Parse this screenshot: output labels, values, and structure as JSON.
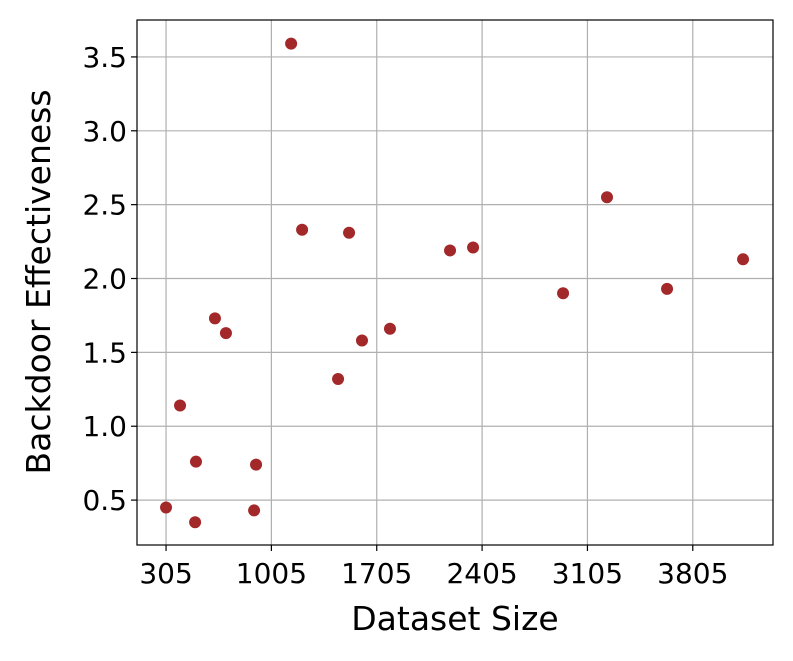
{
  "chart_data": {
    "type": "scatter",
    "x_label": "Dataset Size",
    "y_label": "Backdoor Effectiveness",
    "series": [
      {
        "color": "#a3282a",
        "x": [
          305,
          498,
          504,
          398,
          630,
          703,
          890,
          903,
          1136,
          1209,
          1448,
          1521,
          1607,
          1793,
          2192,
          2345,
          2943,
          3235,
          3634,
          4139
        ],
        "values": [
          0.45,
          0.35,
          0.76,
          1.14,
          1.73,
          1.63,
          0.43,
          0.74,
          3.59,
          2.33,
          1.32,
          2.31,
          1.58,
          1.66,
          2.19,
          2.21,
          1.9,
          2.55,
          1.93,
          2.13
        ]
      }
    ],
    "xlim": [
      112,
      4338
    ],
    "xticks": [
      305,
      1005,
      1705,
      2405,
      3105,
      3805
    ],
    "ylim": [
      0.196,
      3.75
    ],
    "yticks": [
      {
        "value": 0.5,
        "label": "0.5"
      },
      {
        "value": 1.0,
        "label": "1.0"
      },
      {
        "value": 1.5,
        "label": "1.5"
      },
      {
        "value": 2.0,
        "label": "2.0"
      },
      {
        "value": 2.5,
        "label": "2.5"
      },
      {
        "value": 3.0,
        "label": "3.0"
      },
      {
        "value": 3.5,
        "label": "3.5"
      }
    ],
    "grid": true
  }
}
